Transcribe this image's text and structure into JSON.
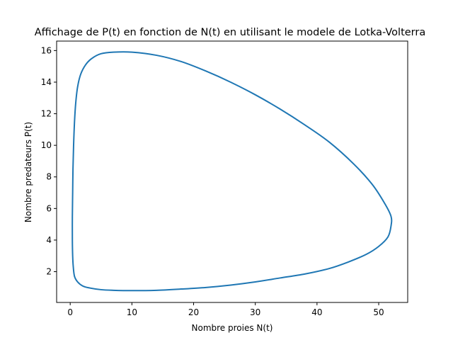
{
  "chart_data": {
    "type": "line",
    "title": "Affichage de P(t) en fonction de N(t) en utilisant le modele de Lotka-Volterra",
    "xlabel": "Nombre proies N(t)",
    "ylabel": "Nombre predateurs P(t)",
    "xlim": [
      -2.2,
      54.7
    ],
    "ylim": [
      0.05,
      16.6
    ],
    "xticks": [
      0,
      10,
      20,
      30,
      40,
      50
    ],
    "yticks": [
      2,
      4,
      6,
      8,
      10,
      12,
      14,
      16
    ],
    "grid": false,
    "series": [
      {
        "color": "#1f77b4",
        "closed": true,
        "x": [
          10.0,
          14.0,
          18.0,
          22.0,
          26.0,
          30.0,
          34.0,
          38.0,
          42.0,
          46.0,
          49.0,
          51.0,
          52.0,
          52.0,
          51.5,
          50.0,
          48.0,
          45.0,
          42.0,
          38.0,
          34.0,
          30.0,
          26.0,
          22.0,
          18.0,
          14.0,
          10.0,
          7.0,
          5.0,
          3.0,
          2.0,
          1.2,
          0.7,
          0.5,
          0.4,
          0.35,
          0.35,
          0.4,
          0.45,
          0.55,
          0.7,
          0.9,
          1.2,
          1.7,
          2.5,
          3.5,
          5.0,
          7.0
        ],
        "y": [
          15.9,
          15.7,
          15.3,
          14.7,
          14.0,
          13.2,
          12.3,
          11.3,
          10.2,
          8.8,
          7.5,
          6.3,
          5.5,
          4.9,
          4.2,
          3.6,
          3.1,
          2.6,
          2.2,
          1.85,
          1.6,
          1.35,
          1.15,
          1.0,
          0.9,
          0.82,
          0.8,
          0.82,
          0.86,
          0.98,
          1.1,
          1.35,
          1.7,
          2.3,
          3.0,
          4.0,
          5.5,
          7.0,
          8.5,
          10.0,
          11.5,
          12.7,
          13.7,
          14.5,
          15.1,
          15.5,
          15.8,
          15.9
        ]
      }
    ]
  }
}
